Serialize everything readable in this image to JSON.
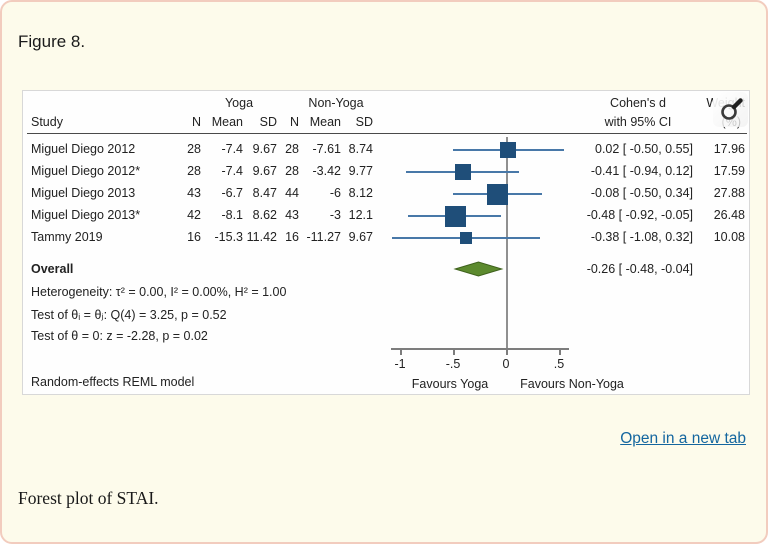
{
  "page": {
    "figure_label": "Figure 8.",
    "open_link": "Open in a new tab",
    "caption": "Forest plot of STAI."
  },
  "colors": {
    "card_background": "#FDFBEB",
    "card_border": "#F2CCBE",
    "marker_square": "#1F4E79",
    "ci_line": "#4878A8",
    "diamond_fill": "#5C8A2E",
    "diamond_stroke": "#3E611C",
    "reference_line": "#909090",
    "link_blue": "#14669F"
  },
  "chart_data": {
    "type": "scatter",
    "variant": "forest-plot",
    "group_headers": {
      "yoga": "Yoga",
      "non_yoga": "Non-Yoga",
      "effect_line1": "Cohen's d",
      "effect_line2": "with 95% CI",
      "weight_line1": "Weight",
      "weight_line2": "(%)"
    },
    "col_headers": [
      "Study",
      "N",
      "Mean",
      "SD",
      "N",
      "Mean",
      "SD"
    ],
    "studies": [
      {
        "name": "Miguel Diego 2012",
        "n1": "28",
        "mean1": "-7.4",
        "sd1": "9.67",
        "n2": "28",
        "mean2": "-7.61",
        "sd2": "8.74",
        "d": 0.02,
        "lo": -0.5,
        "hi": 0.55,
        "ci_label": "0.02 [ -0.50,  0.55]",
        "weight": "17.96",
        "weight_num": 17.96
      },
      {
        "name": "Miguel Diego 2012*",
        "n1": "28",
        "mean1": "-7.4",
        "sd1": "9.67",
        "n2": "28",
        "mean2": "-3.42",
        "sd2": "9.77",
        "d": -0.41,
        "lo": -0.94,
        "hi": 0.12,
        "ci_label": "-0.41 [ -0.94,  0.12]",
        "weight": "17.59",
        "weight_num": 17.59
      },
      {
        "name": "Miguel Diego 2013",
        "n1": "43",
        "mean1": "-6.7",
        "sd1": "8.47",
        "n2": "44",
        "mean2": "-6",
        "sd2": "8.12",
        "d": -0.08,
        "lo": -0.5,
        "hi": 0.34,
        "ci_label": "-0.08 [ -0.50,  0.34]",
        "weight": "27.88",
        "weight_num": 27.88
      },
      {
        "name": "Miguel Diego 2013*",
        "n1": "42",
        "mean1": "-8.1",
        "sd1": "8.62",
        "n2": "43",
        "mean2": "-3",
        "sd2": "12.1",
        "d": -0.48,
        "lo": -0.92,
        "hi": -0.05,
        "ci_label": "-0.48 [ -0.92, -0.05]",
        "weight": "26.48",
        "weight_num": 26.48
      },
      {
        "name": "Tammy 2019",
        "n1": "16",
        "mean1": "-15.3",
        "sd1": "11.42",
        "n2": "16",
        "mean2": "-11.27",
        "sd2": "9.67",
        "d": -0.38,
        "lo": -1.08,
        "hi": 0.32,
        "ci_label": "-0.38 [ -1.08,  0.32]",
        "weight": "10.08",
        "weight_num": 10.08
      }
    ],
    "overall": {
      "label": "Overall",
      "d": -0.26,
      "lo": -0.48,
      "hi": -0.04,
      "ci_label": "-0.26 [ -0.48, -0.04]"
    },
    "stats": [
      "Heterogeneity: τ² = 0.00, I² = 0.00%, H² = 1.00",
      "Test of θᵢ = θⱼ: Q(4) = 3.25, p = 0.52",
      "Test of θ = 0: z = -2.28, p = 0.02"
    ],
    "footer": "Random-effects REML model",
    "axis": {
      "ticks": [
        -1,
        -0.5,
        0,
        0.5
      ],
      "tick_labels": [
        "-1",
        "-.5",
        "0",
        ".5"
      ],
      "favours_left": "Favours Yoga",
      "favours_right": "Favours Non-Yoga",
      "xlim": [
        -1.15,
        0.7
      ],
      "reference_value": 0
    }
  }
}
